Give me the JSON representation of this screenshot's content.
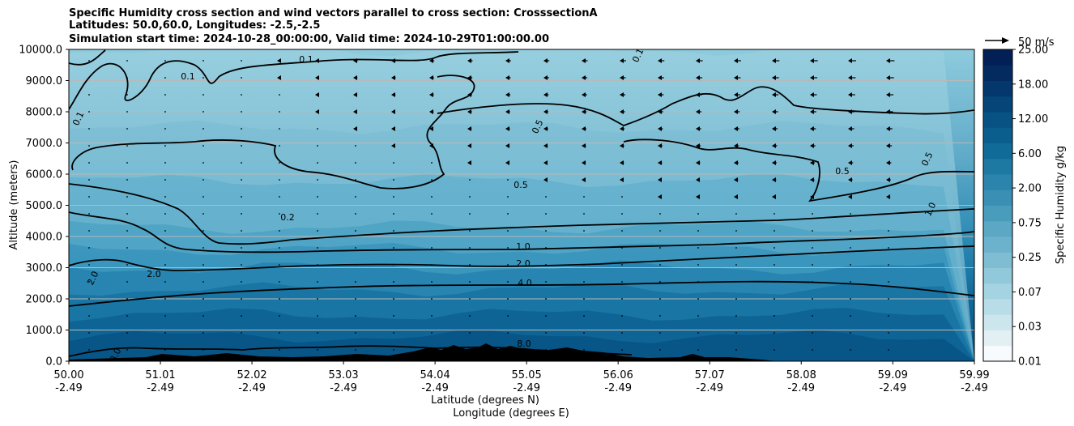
{
  "chart_data": {
    "type": "contour",
    "title_lines": [
      "Specific Humidity cross section and wind vectors parallel to cross section: CrosssectionA",
      "Latitudes: 50.0,60.0, Longitudes: -2.5,-2.5",
      "Simulation start time: 2024-10-28_00:00:00, Valid time: 2024-10-29T01:00:00.00"
    ],
    "ylabel": "Altitude (meters)",
    "xlabel_lat": "Latitude (degrees N)",
    "xlabel_lon": "Longitude (degrees E)",
    "ylim": [
      0,
      10000
    ],
    "yticks": [
      "0.0",
      "1000.0",
      "2000.0",
      "3000.0",
      "4000.0",
      "5000.0",
      "6000.0",
      "7000.0",
      "8000.0",
      "9000.0",
      "10000.0"
    ],
    "xticks_lat": [
      "50.00",
      "51.01",
      "52.02",
      "53.03",
      "54.04",
      "55.05",
      "56.06",
      "57.07",
      "58.08",
      "59.09",
      "59.99"
    ],
    "xticks_lon": [
      "-2.49",
      "-2.49",
      "-2.49",
      "-2.49",
      "-2.49",
      "-2.49",
      "-2.49",
      "-2.49",
      "-2.49",
      "-2.49",
      "-2.49"
    ],
    "colorbar_label": "Specific Humidity g/kg",
    "colorbar_ticks": [
      "0.01",
      "0.03",
      "0.07",
      "0.25",
      "0.75",
      "2.00",
      "6.00",
      "12.00",
      "18.00",
      "25.00"
    ],
    "colorbar_colors": [
      "#f7fbfd",
      "#e2f0f4",
      "#cde6ee",
      "#b8dde8",
      "#a4d3e1",
      "#91c8da",
      "#7fbdd3",
      "#6cb2cc",
      "#5ba7c4",
      "#4a9cbc",
      "#3a90b4",
      "#2b84ab",
      "#1d78a2",
      "#106b98",
      "#0a5e8d",
      "#075282",
      "#054577",
      "#04386c",
      "#032b60",
      "#022055"
    ],
    "contour_levels": [
      {
        "label": "0.1",
        "qvalue": 0.1
      },
      {
        "label": "0.2",
        "qvalue": 0.2
      },
      {
        "label": "0.5",
        "qvalue": 0.5
      },
      {
        "label": "1.0",
        "qvalue": 1.0
      },
      {
        "label": "2.0",
        "qvalue": 2.0
      },
      {
        "label": "4.0",
        "qvalue": 4.0
      },
      {
        "label": "8.0",
        "qvalue": 8.0
      }
    ],
    "humidity_layers": [
      {
        "altitude_top": 10000,
        "q": 0.07
      },
      {
        "altitude_top": 7500,
        "q": 0.25
      },
      {
        "altitude_top": 5800,
        "q": 0.5
      },
      {
        "altitude_top": 4300,
        "q": 0.75
      },
      {
        "altitude_top": 3600,
        "q": 1.0
      },
      {
        "altitude_top": 3000,
        "q": 2.0
      },
      {
        "altitude_top": 2300,
        "q": 4.0
      },
      {
        "altitude_top": 1500,
        "q": 6.0
      },
      {
        "altitude_top": 800,
        "q": 8.0
      }
    ],
    "wind_reference": {
      "label": "50 m/s",
      "speed": 50
    }
  }
}
